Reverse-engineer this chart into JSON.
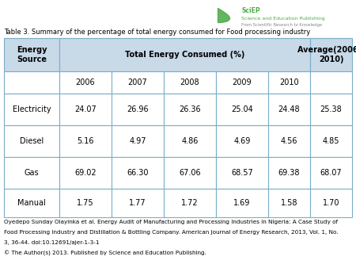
{
  "title": "Table 3. Summary of the percentage of total energy consumed for Food processing industry",
  "rows": [
    [
      "Electricity",
      "24.07",
      "26.96",
      "26.36",
      "25.04",
      "24.48",
      "25.38"
    ],
    [
      "Diesel",
      "5.16",
      "4.97",
      "4.86",
      "4.69",
      "4.56",
      "4.85"
    ],
    [
      "Gas",
      "69.02",
      "66.30",
      "67.06",
      "68.57",
      "69.38",
      "68.07"
    ],
    [
      "Manual",
      "1.75",
      "1.77",
      "1.72",
      "1.69",
      "1.58",
      "1.70"
    ]
  ],
  "years": [
    "2006",
    "2007",
    "2008",
    "2009",
    "2010"
  ],
  "footer_lines": [
    "Oyedepo Sunday Olayinka et al. Energy Audit of Manufacturing and Processing Industries in Nigeria: A Case Study of",
    "Food Processing Industry and Distillation & Bottling Company. American Journal of Energy Research, 2013, Vol. 1, No.",
    "3, 36-44. doi:10.12691/ajer-1-3-1",
    "© The Author(s) 2013. Published by Science and Education Publishing."
  ],
  "header_bg": "#c8d9e8",
  "cell_bg": "#ffffff",
  "border_color": "#7aafc8",
  "title_fontsize": 6.0,
  "header_fontsize": 7.0,
  "cell_fontsize": 7.0,
  "footer_fontsize": 5.2
}
